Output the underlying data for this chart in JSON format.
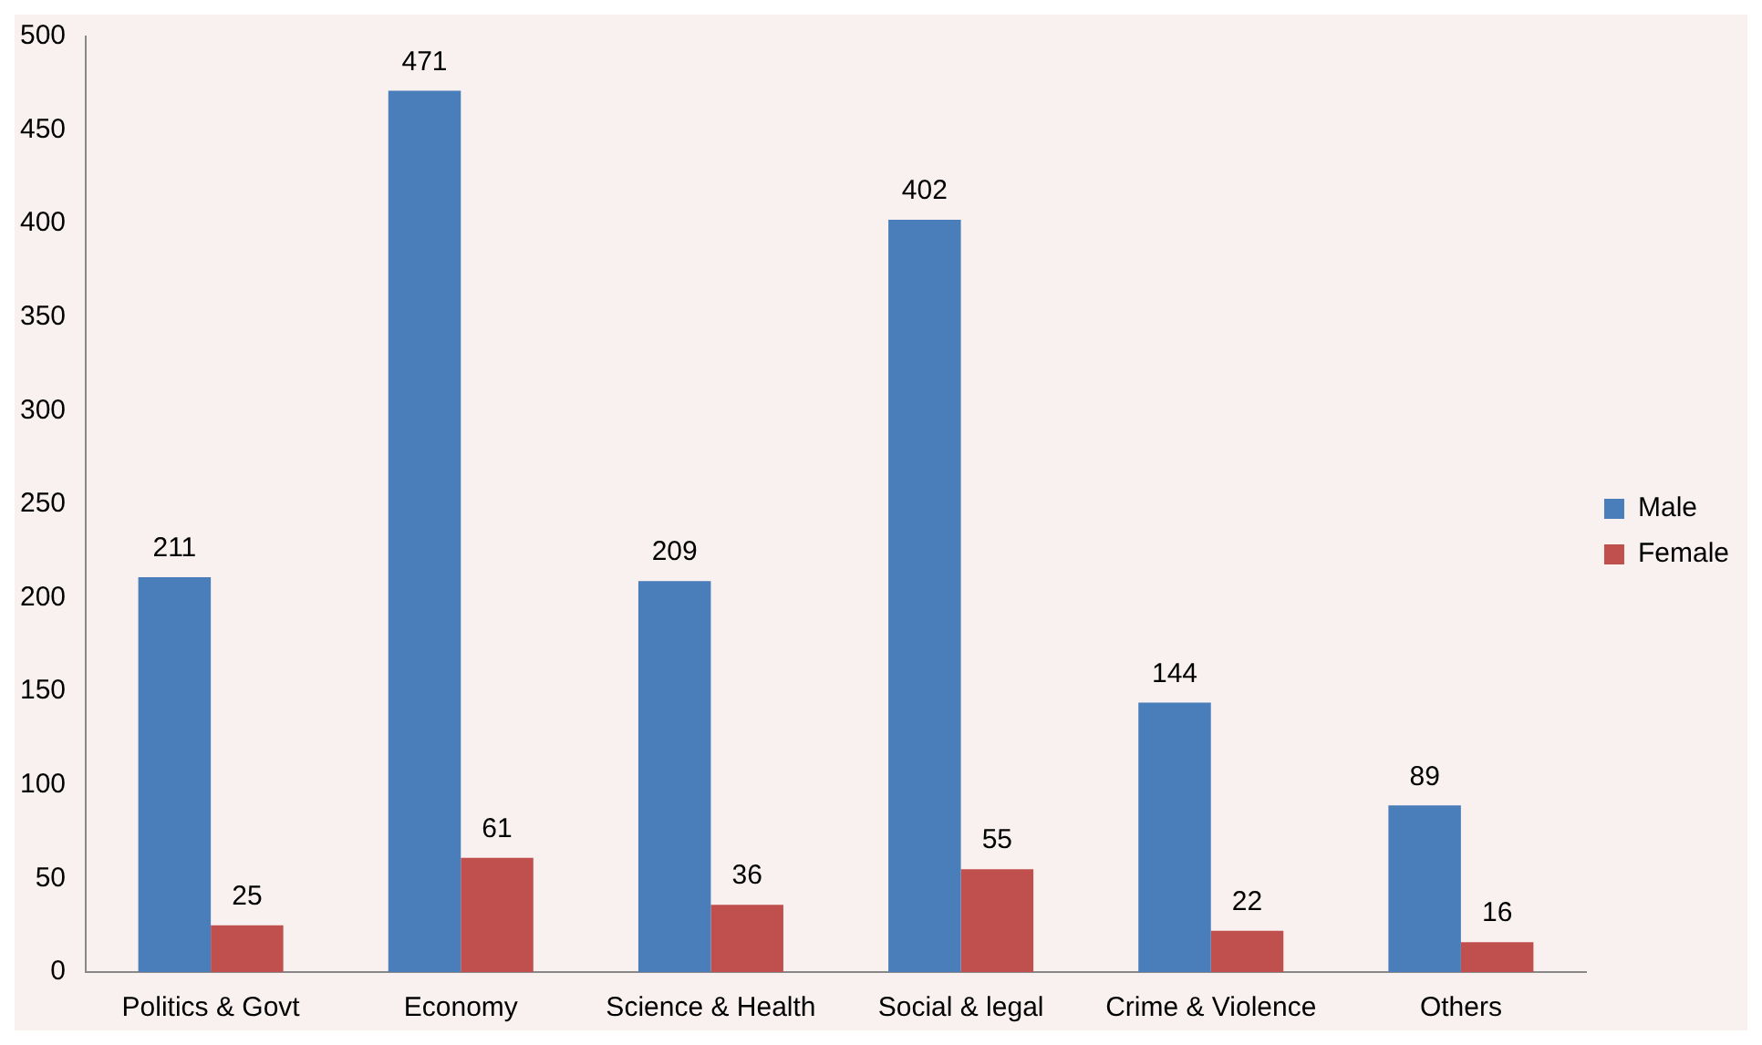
{
  "chart_data": {
    "type": "bar",
    "categories": [
      "Politics & Govt",
      "Economy",
      "Science & Health",
      "Social & legal",
      "Crime & Violence",
      "Others"
    ],
    "series": [
      {
        "name": "Male",
        "color": "#4a7ebb",
        "values": [
          211,
          471,
          209,
          402,
          144,
          89
        ]
      },
      {
        "name": "Female",
        "color": "#c0504d",
        "values": [
          25,
          61,
          36,
          55,
          22,
          16
        ]
      }
    ],
    "ylim": [
      0,
      500
    ],
    "yticks": [
      0,
      50,
      100,
      150,
      200,
      250,
      300,
      350,
      400,
      450,
      500
    ],
    "grid": false,
    "legend": "right",
    "data_labels": true
  }
}
